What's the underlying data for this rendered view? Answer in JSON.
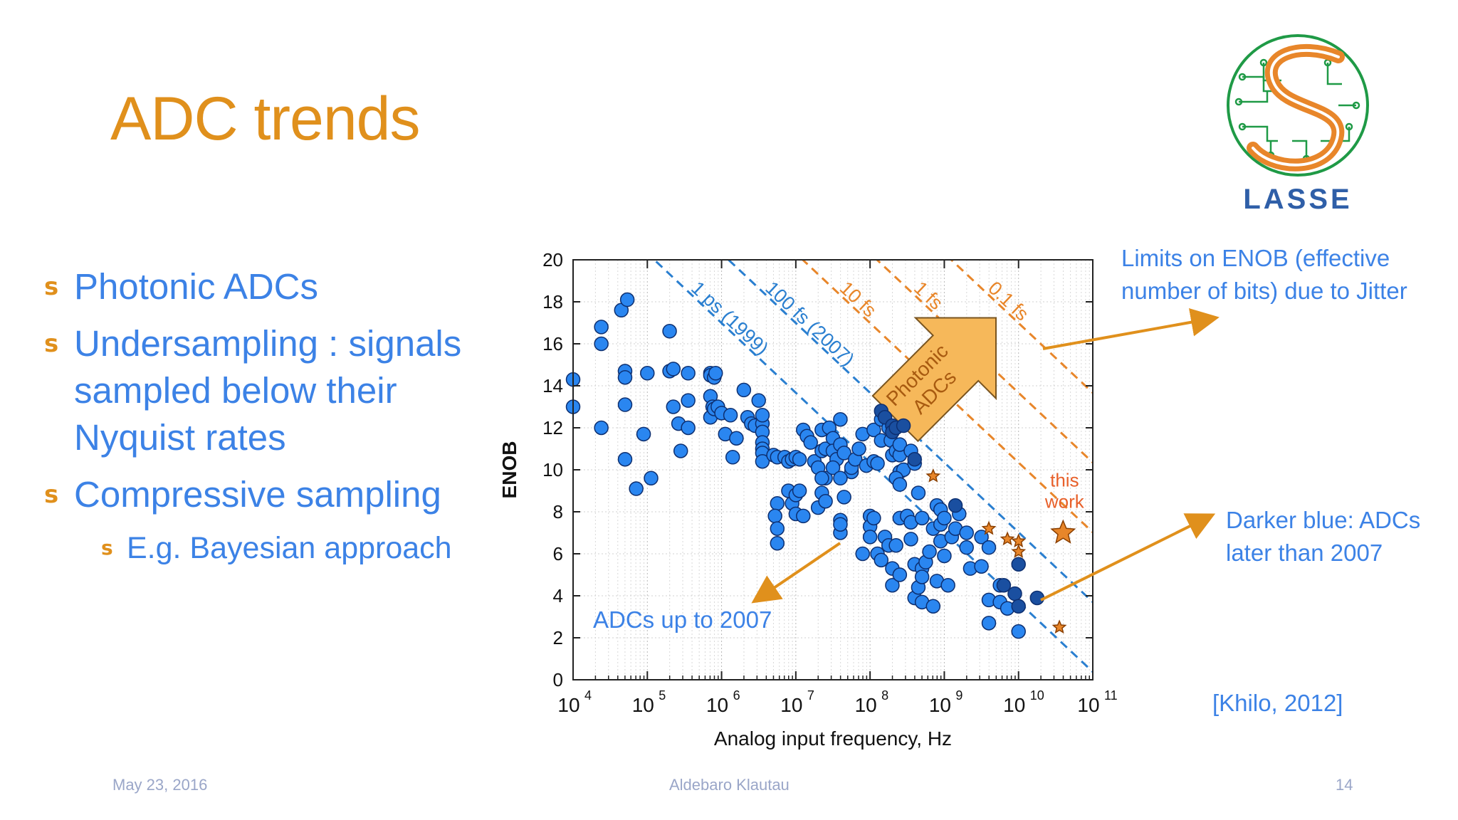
{
  "slide": {
    "title": "ADC trends",
    "logo_text": "LASSE",
    "bullets": [
      {
        "text": "Photonic ADCs",
        "level": 1
      },
      {
        "text": "Undersampling : signals sampled below their Nyquist rates",
        "level": 1
      },
      {
        "text": "Compressive sampling",
        "level": 1
      },
      {
        "text": "E.g. Bayesian approach",
        "level": 2
      }
    ],
    "annotations": {
      "limits": "Limits on ENOB (effective number  of  bits) due to Jitter",
      "darker": "Darker blue: ADCs later than 2007",
      "up_to": "ADCs up to 2007",
      "citation": "[Khilo, 2012]"
    },
    "footer": {
      "date": "May 23, 2016",
      "author": "Aldebaro Klautau",
      "page": "14"
    },
    "colors": {
      "title": "#e0901c",
      "text": "#3c82e6",
      "accent": "#e0901c"
    }
  },
  "chart_data": {
    "type": "scatter",
    "xlabel": "Analog input frequency, Hz",
    "ylabel": "ENOB",
    "xscale": "log",
    "xlim_exp": [
      4,
      11
    ],
    "x_ticks": [
      {
        "base": "10",
        "exp": "4"
      },
      {
        "base": "10",
        "exp": "5"
      },
      {
        "base": "10",
        "exp": "6"
      },
      {
        "base": "10",
        "exp": "7"
      },
      {
        "base": "10",
        "exp": "8"
      },
      {
        "base": "10",
        "exp": "9"
      },
      {
        "base": "10",
        "exp": "10"
      },
      {
        "base": "10",
        "exp": "11"
      }
    ],
    "ylim": [
      0,
      20
    ],
    "y_ticks": [
      "0",
      "2",
      "4",
      "6",
      "8",
      "10",
      "12",
      "14",
      "16",
      "18",
      "20"
    ],
    "grid": true,
    "jitter_lines": [
      {
        "label": "1 ps (1999)",
        "jitter_s": 1e-12,
        "color": "#2a7fd0"
      },
      {
        "label": "100 fs (2007)",
        "jitter_s": 1e-13,
        "color": "#2a7fd0"
      },
      {
        "label": "10 fs",
        "jitter_s": 1e-14,
        "color": "#e8862a"
      },
      {
        "label": "1 fs",
        "jitter_s": 1e-15,
        "color": "#e8862a"
      },
      {
        "label": "0.1 fs",
        "jitter_s": 1e-16,
        "color": "#e8862a"
      }
    ],
    "region_label": [
      "Photonic",
      "ADCs"
    ],
    "work_label": [
      "this",
      "work"
    ],
    "series": [
      {
        "name": "ADCs up to 2007",
        "color": "#2a86f0",
        "points": [
          [
            4.0,
            14.3
          ],
          [
            4.0,
            13.0
          ],
          [
            4.38,
            16.8
          ],
          [
            4.38,
            16.0
          ],
          [
            4.38,
            12.0
          ],
          [
            4.65,
            17.6
          ],
          [
            4.73,
            18.1
          ],
          [
            4.7,
            14.7
          ],
          [
            4.7,
            14.4
          ],
          [
            4.7,
            13.1
          ],
          [
            4.7,
            10.5
          ],
          [
            4.95,
            11.7
          ],
          [
            5.0,
            14.6
          ],
          [
            5.05,
            9.6
          ],
          [
            4.85,
            9.1
          ],
          [
            5.3,
            16.6
          ],
          [
            5.3,
            14.7
          ],
          [
            5.35,
            14.8
          ],
          [
            5.35,
            13.0
          ],
          [
            5.42,
            12.2
          ],
          [
            5.45,
            10.9
          ],
          [
            5.55,
            13.3
          ],
          [
            5.55,
            12.0
          ],
          [
            5.55,
            14.6
          ],
          [
            5.85,
            14.6
          ],
          [
            5.85,
            14.5
          ],
          [
            5.9,
            14.4
          ],
          [
            5.92,
            14.6
          ],
          [
            5.85,
            13.5
          ],
          [
            5.85,
            12.5
          ],
          [
            5.88,
            13.0
          ],
          [
            5.9,
            12.9
          ],
          [
            5.95,
            13.0
          ],
          [
            6.0,
            12.7
          ],
          [
            6.05,
            11.7
          ],
          [
            6.15,
            10.6
          ],
          [
            6.12,
            12.6
          ],
          [
            6.2,
            11.5
          ],
          [
            6.3,
            13.8
          ],
          [
            6.35,
            12.5
          ],
          [
            6.4,
            12.2
          ],
          [
            6.45,
            12.1
          ],
          [
            6.5,
            13.3
          ],
          [
            6.55,
            12.2
          ],
          [
            6.55,
            11.8
          ],
          [
            6.55,
            11.3
          ],
          [
            6.55,
            11.0
          ],
          [
            6.55,
            10.8
          ],
          [
            6.55,
            10.4
          ],
          [
            6.55,
            12.6
          ],
          [
            6.7,
            10.7
          ],
          [
            6.75,
            10.6
          ],
          [
            6.85,
            10.6
          ],
          [
            6.9,
            10.4
          ],
          [
            6.95,
            10.5
          ],
          [
            7.0,
            10.6
          ],
          [
            7.05,
            10.5
          ],
          [
            7.1,
            11.9
          ],
          [
            7.15,
            11.6
          ],
          [
            7.2,
            11.3
          ],
          [
            7.25,
            10.4
          ],
          [
            7.3,
            10.1
          ],
          [
            7.35,
            11.9
          ],
          [
            7.35,
            10.9
          ],
          [
            7.4,
            11.0
          ],
          [
            7.4,
            9.6
          ],
          [
            7.45,
            12.0
          ],
          [
            7.5,
            11.5
          ],
          [
            7.5,
            10.9
          ],
          [
            7.55,
            10.5
          ],
          [
            7.6,
            12.4
          ],
          [
            7.6,
            11.2
          ],
          [
            7.65,
            10.8
          ],
          [
            7.75,
            9.9
          ],
          [
            7.75,
            10.1
          ],
          [
            7.8,
            10.5
          ],
          [
            7.85,
            11.0
          ],
          [
            7.9,
            11.7
          ],
          [
            7.95,
            10.2
          ],
          [
            8.05,
            11.9
          ],
          [
            8.05,
            10.4
          ],
          [
            8.1,
            10.3
          ],
          [
            8.15,
            11.4
          ],
          [
            8.15,
            12.4
          ],
          [
            8.25,
            12.0
          ],
          [
            8.28,
            11.4
          ],
          [
            8.3,
            10.7
          ],
          [
            8.35,
            10.9
          ],
          [
            8.4,
            9.9
          ],
          [
            8.45,
            10.0
          ],
          [
            6.9,
            9.0
          ],
          [
            6.95,
            8.4
          ],
          [
            7.0,
            8.8
          ],
          [
            7.05,
            9.0
          ],
          [
            7.0,
            7.9
          ],
          [
            6.75,
            8.4
          ],
          [
            6.72,
            7.8
          ],
          [
            6.75,
            7.2
          ],
          [
            6.75,
            6.5
          ],
          [
            7.1,
            7.8
          ],
          [
            7.35,
            8.9
          ],
          [
            7.3,
            8.2
          ],
          [
            7.35,
            9.6
          ],
          [
            7.4,
            8.5
          ],
          [
            7.5,
            10.1
          ],
          [
            7.6,
            9.6
          ],
          [
            7.65,
            8.7
          ],
          [
            7.6,
            7.6
          ],
          [
            7.6,
            7.0
          ],
          [
            7.6,
            7.4
          ],
          [
            7.9,
            6.0
          ],
          [
            8.0,
            7.8
          ],
          [
            8.0,
            7.3
          ],
          [
            8.05,
            7.7
          ],
          [
            8.0,
            6.8
          ],
          [
            8.1,
            6.0
          ],
          [
            8.15,
            5.7
          ],
          [
            8.2,
            6.8
          ],
          [
            8.25,
            6.4
          ],
          [
            8.3,
            5.3
          ],
          [
            8.35,
            6.4
          ],
          [
            8.3,
            4.5
          ],
          [
            8.4,
            5.0
          ],
          [
            8.4,
            7.7
          ],
          [
            8.5,
            7.8
          ],
          [
            8.55,
            7.5
          ],
          [
            8.55,
            6.7
          ],
          [
            8.6,
            5.5
          ],
          [
            8.7,
            5.3
          ],
          [
            8.75,
            5.6
          ],
          [
            8.7,
            7.7
          ],
          [
            8.8,
            6.1
          ],
          [
            8.85,
            7.2
          ],
          [
            8.9,
            8.3
          ],
          [
            8.95,
            8.1
          ],
          [
            8.95,
            7.4
          ],
          [
            9.0,
            7.7
          ],
          [
            8.95,
            6.6
          ],
          [
            9.0,
            5.9
          ],
          [
            8.9,
            4.7
          ],
          [
            9.05,
            4.5
          ],
          [
            9.1,
            6.8
          ],
          [
            9.15,
            7.2
          ],
          [
            9.2,
            7.9
          ],
          [
            9.3,
            7.0
          ],
          [
            9.3,
            6.3
          ],
          [
            9.35,
            5.3
          ],
          [
            9.5,
            5.4
          ],
          [
            9.5,
            6.8
          ],
          [
            9.6,
            6.3
          ],
          [
            9.6,
            3.8
          ],
          [
            9.6,
            2.7
          ],
          [
            9.75,
            4.5
          ],
          [
            9.75,
            3.7
          ],
          [
            9.85,
            3.4
          ],
          [
            10.0,
            2.3
          ],
          [
            8.6,
            3.9
          ],
          [
            8.7,
            3.7
          ],
          [
            8.85,
            3.5
          ],
          [
            8.65,
            4.4
          ],
          [
            8.7,
            4.9
          ],
          [
            8.65,
            8.9
          ],
          [
            8.4,
            10.7
          ],
          [
            8.4,
            11.2
          ],
          [
            8.6,
            10.3
          ],
          [
            8.55,
            10.9
          ],
          [
            8.35,
            9.6
          ],
          [
            8.4,
            9.3
          ]
        ]
      },
      {
        "name": "Darker blue: ADCs later than 2007",
        "color": "#1a4fa0",
        "points": [
          [
            8.15,
            12.8
          ],
          [
            8.2,
            12.5
          ],
          [
            8.3,
            12.1
          ],
          [
            8.3,
            11.8
          ],
          [
            8.35,
            12.0
          ],
          [
            8.45,
            12.1
          ],
          [
            8.6,
            10.5
          ],
          [
            9.15,
            8.3
          ],
          [
            9.8,
            4.5
          ],
          [
            9.95,
            4.1
          ],
          [
            10.0,
            5.5
          ],
          [
            10.0,
            3.5
          ],
          [
            10.25,
            3.9
          ]
        ]
      },
      {
        "name": "this work",
        "color": "#e8862a",
        "marker": "star",
        "points": [
          [
            8.85,
            9.7
          ],
          [
            9.6,
            7.2
          ],
          [
            9.85,
            6.7
          ],
          [
            10.0,
            6.6
          ],
          [
            10.0,
            6.1
          ],
          [
            10.55,
            2.5
          ],
          [
            10.6,
            7.0
          ]
        ]
      }
    ]
  }
}
